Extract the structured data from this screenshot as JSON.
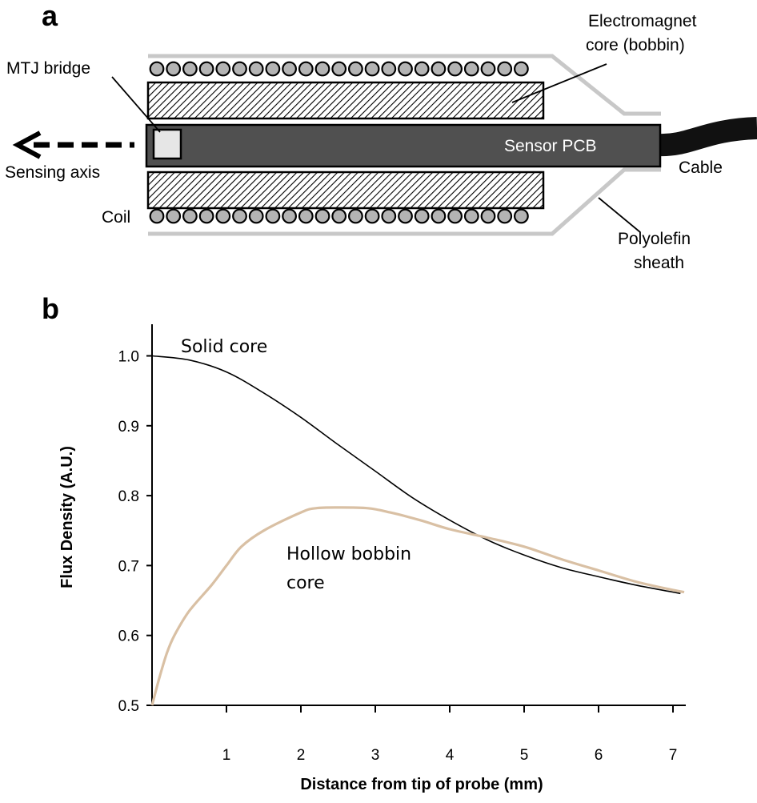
{
  "figure": {
    "panel_a": {
      "label": "a",
      "labels": {
        "electromagnet_line1": "Electromagnet",
        "electromagnet_line2": "core (bobbin)",
        "mtj_bridge": "MTJ bridge",
        "sensor_pcb": "Sensor PCB",
        "sensing_axis": "Sensing axis",
        "cable": "Cable",
        "coil": "Coil",
        "sheath_line1": "Polyolefin",
        "sheath_line2": "sheath"
      },
      "colors": {
        "pcb": "#505050",
        "sheath": "#c8c8c8",
        "coil_fill": "#b4b4b4",
        "mtj_fill": "#e6e6e6"
      }
    },
    "panel_b": {
      "label": "b"
    }
  },
  "chart_data": {
    "type": "line",
    "title": "",
    "xlabel": "Distance from tip of probe (mm)",
    "ylabel": "Flux Density (A.U.)",
    "xlim": [
      0,
      7.3
    ],
    "ylim": [
      0.5,
      1.07
    ],
    "xticks": [
      1,
      2,
      3,
      4,
      5,
      6,
      7
    ],
    "xtick_labels": [
      "1",
      "2",
      "3",
      "4",
      "5",
      "6",
      "7"
    ],
    "yticks": [
      0.5,
      0.6,
      0.7,
      0.8,
      0.9,
      1.0
    ],
    "ytick_labels": [
      "0.5",
      "0.6",
      "0.7",
      "0.8",
      "0.9",
      "1.0"
    ],
    "series": [
      {
        "name": "Solid core",
        "annotation_lines": [
          "Solid core"
        ],
        "color": "#000000",
        "x": [
          0,
          0.5,
          1.0,
          1.5,
          2.0,
          2.5,
          3.0,
          3.5,
          4.0,
          4.5,
          5.0,
          5.5,
          6.0,
          6.5,
          7.0,
          7.1
        ],
        "y": [
          1.0,
          0.994,
          0.977,
          0.947,
          0.912,
          0.873,
          0.835,
          0.797,
          0.765,
          0.737,
          0.715,
          0.697,
          0.684,
          0.672,
          0.662,
          0.66
        ]
      },
      {
        "name": "Hollow bobbin core",
        "annotation_lines": [
          "Hollow bobbin",
          "core"
        ],
        "color": "#d9c0a4",
        "x": [
          0,
          0.1,
          0.2,
          0.3,
          0.5,
          0.8,
          1.0,
          1.2,
          1.5,
          2.0,
          2.2,
          2.5,
          2.9,
          3.2,
          3.6,
          4.0,
          4.5,
          5.0,
          5.5,
          6.0,
          6.5,
          7.0,
          7.15
        ],
        "y": [
          0.5,
          0.54,
          0.575,
          0.6,
          0.635,
          0.672,
          0.7,
          0.727,
          0.75,
          0.776,
          0.782,
          0.783,
          0.782,
          0.776,
          0.765,
          0.752,
          0.74,
          0.727,
          0.709,
          0.693,
          0.677,
          0.665,
          0.662
        ]
      }
    ]
  }
}
